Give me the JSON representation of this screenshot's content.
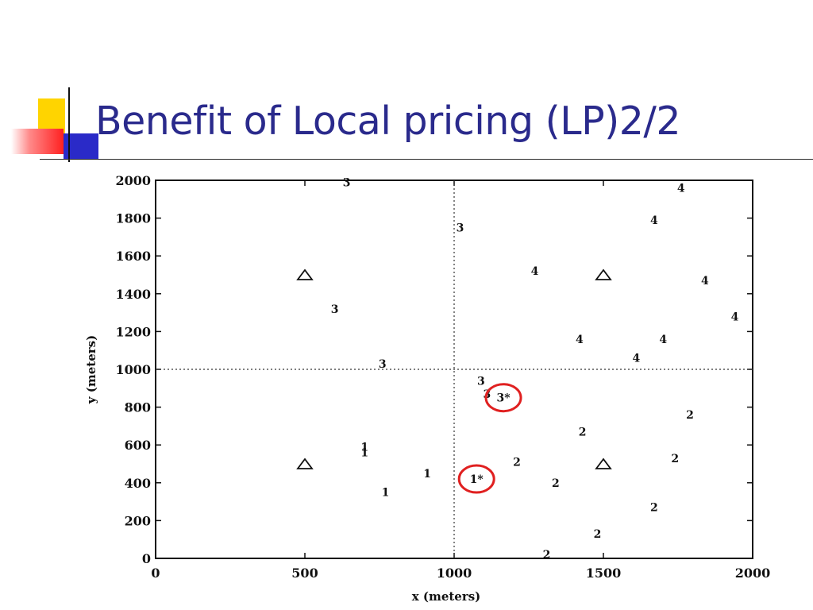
{
  "slide": {
    "title": "Benefit of Local pricing (LP)2/2"
  },
  "colors": {
    "title": "#2a2a8c",
    "highlight": "#e02020",
    "deco_yellow": "#ffd400",
    "deco_red": "#ff2020",
    "deco_blue": "#2a2ac8"
  },
  "chart_data": {
    "type": "scatter",
    "xlabel": "x (meters)",
    "ylabel": "y (meters)",
    "xlim": [
      0,
      2000
    ],
    "ylim": [
      0,
      2000
    ],
    "xticks": [
      0,
      500,
      1000,
      1500,
      2000
    ],
    "yticks": [
      0,
      200,
      400,
      600,
      800,
      1000,
      1200,
      1400,
      1600,
      1800,
      2000
    ],
    "grid": false,
    "dividers": {
      "x": 1000,
      "y": 1000,
      "style": "dotted"
    },
    "triangles": [
      {
        "x": 500,
        "y": 1500
      },
      {
        "x": 1500,
        "y": 1500
      },
      {
        "x": 500,
        "y": 500
      },
      {
        "x": 1500,
        "y": 500
      }
    ],
    "points": [
      {
        "label": "1",
        "x": 700,
        "y": 590
      },
      {
        "label": "1",
        "x": 700,
        "y": 560
      },
      {
        "label": "1",
        "x": 910,
        "y": 450
      },
      {
        "label": "1",
        "x": 770,
        "y": 350
      },
      {
        "label": "2",
        "x": 1430,
        "y": 670
      },
      {
        "label": "2",
        "x": 1210,
        "y": 510
      },
      {
        "label": "2",
        "x": 1340,
        "y": 400
      },
      {
        "label": "2",
        "x": 1790,
        "y": 760
      },
      {
        "label": "2",
        "x": 1740,
        "y": 530
      },
      {
        "label": "2",
        "x": 1670,
        "y": 270
      },
      {
        "label": "2",
        "x": 1480,
        "y": 130
      },
      {
        "label": "2",
        "x": 1310,
        "y": 20
      },
      {
        "label": "3",
        "x": 640,
        "y": 1990
      },
      {
        "label": "3",
        "x": 1020,
        "y": 1750
      },
      {
        "label": "3",
        "x": 600,
        "y": 1320
      },
      {
        "label": "3",
        "x": 760,
        "y": 1030
      },
      {
        "label": "3",
        "x": 1090,
        "y": 940
      },
      {
        "label": "3",
        "x": 1110,
        "y": 870
      },
      {
        "label": "4",
        "x": 1270,
        "y": 1520
      },
      {
        "label": "4",
        "x": 1420,
        "y": 1160
      },
      {
        "label": "4",
        "x": 1610,
        "y": 1060
      },
      {
        "label": "4",
        "x": 1700,
        "y": 1160
      },
      {
        "label": "4",
        "x": 1670,
        "y": 1790
      },
      {
        "label": "4",
        "x": 1760,
        "y": 1960
      },
      {
        "label": "4",
        "x": 1840,
        "y": 1470
      },
      {
        "label": "4",
        "x": 1940,
        "y": 1280
      }
    ],
    "highlighted": [
      {
        "label": "3*",
        "x": 1165,
        "y": 850
      },
      {
        "label": "1*",
        "x": 1075,
        "y": 420
      }
    ]
  }
}
